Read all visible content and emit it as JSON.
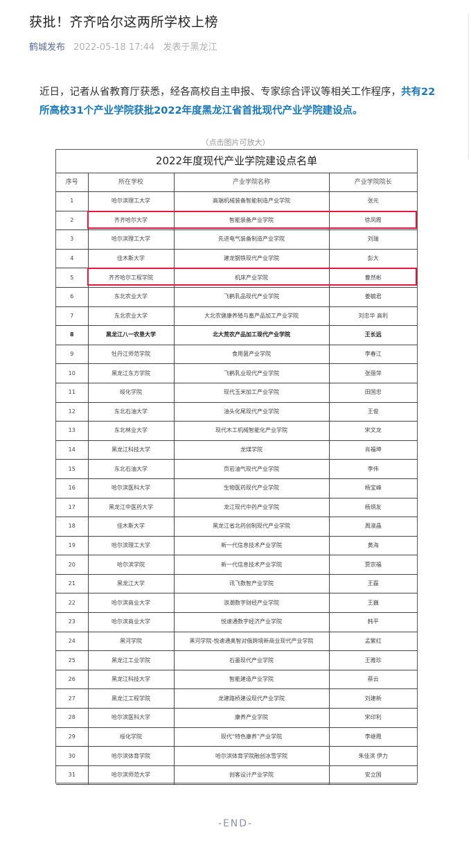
{
  "article": {
    "title": "获批！齐齐哈尔这两所学校上榜",
    "author": "鹤城发布",
    "date": "2022-05-18 17:44",
    "location": "发表于黑龙江",
    "paragraph_normal": "近日，记者从省教育厅获悉，经各高校自主申报、专家综合评议等相关工作程序，",
    "paragraph_highlight": "共有22所高校31个产业学院获批2022年度黑龙江省首批现代产业学院建设点。",
    "caption": "（点击图片可放大）",
    "end": "-END-",
    "highlight_color": "#1b78b6",
    "box_color": "#e8173f"
  },
  "table": {
    "title": "2022年度现代产业学院建设点名单",
    "headers": [
      "序号",
      "所在学校",
      "产业学院名称",
      "产业学院院长"
    ],
    "highlighted_rows": [
      2,
      5
    ],
    "rows": [
      [
        "1",
        "哈尔滨理工大学",
        "高端机械装备智能制造产业学院",
        "张元"
      ],
      [
        "2",
        "齐齐哈尔大学",
        "智能装备产业学院",
        "徐凤霞"
      ],
      [
        "3",
        "哈尔滨理工大学",
        "先进电气装备制造产业学院",
        "刘瑞"
      ],
      [
        "4",
        "佳木斯大学",
        "建龙钢铁现代产业学院",
        "彭大"
      ],
      [
        "5",
        "齐齐哈尔工程学院",
        "机床产业学院",
        "曹然彬"
      ],
      [
        "6",
        "东北农业大学",
        "飞鹤乳品现代产业学院",
        "姜毓君"
      ],
      [
        "7",
        "东北农业大学",
        "大北农健康养殖与畜产品加工产业学院",
        "刘忠华 高利"
      ],
      [
        "8",
        "黑龙江八一农垦大学",
        "北大荒农产品加工现代产业学院",
        "王长远"
      ],
      [
        "9",
        "牡丹江师范学院",
        "食用菌产业学院",
        "李春江"
      ],
      [
        "10",
        "黑龙江东方学院",
        "飞鹤乳业现代产业学院",
        "张丽萍"
      ],
      [
        "11",
        "绥化学院",
        "现代玉米加工产业学院",
        "田国忠"
      ],
      [
        "12",
        "东北石油大学",
        "油头化尾现代产业学院",
        "王俊"
      ],
      [
        "13",
        "东北林业大学",
        "现代木工机械智能化产业学院",
        "宋文龙"
      ],
      [
        "14",
        "黑龙江科技大学",
        "龙煤学院",
        "肖福坤"
      ],
      [
        "15",
        "东北石油大学",
        "页岩油气现代产业学院",
        "李伟"
      ],
      [
        "16",
        "哈尔滨医科大学",
        "生物医药现代产业学院",
        "杨宝峰"
      ],
      [
        "17",
        "黑龙江中医药大学",
        "龙江现代中药产业学院",
        "杨炳友"
      ],
      [
        "18",
        "佳木斯大学",
        "黑龙江省北药创制现代产业学院",
        "周淑晶"
      ],
      [
        "19",
        "哈尔滨理工大学",
        "新一代信息技术产业学院",
        "黄海"
      ],
      [
        "20",
        "哈尔滨学院",
        "新一代信息技术产业学院",
        "贾宗福"
      ],
      [
        "21",
        "黑龙江大学",
        "讯飞数智产业学院",
        "王磊"
      ],
      [
        "22",
        "哈尔滨商业大学",
        "浪潮数字财经产业学院",
        "王巍"
      ],
      [
        "23",
        "哈尔滨商业大学",
        "悦速通数字经济产业学院",
        "韩平"
      ],
      [
        "24",
        "黑河学院",
        "黑河学院-悦速通奥智对俄跨境新商业现代产业学院",
        "孟繁红"
      ],
      [
        "25",
        "黑龙江工业学院",
        "石墨现代产业学院",
        "王雅珍"
      ],
      [
        "26",
        "黑龙江科技大学",
        "智能建造产业学院",
        "蔡云"
      ],
      [
        "27",
        "黑龙江工程学院",
        "龙建路桥建设现代产业学院",
        "刘建新"
      ],
      [
        "28",
        "哈尔滨医科大学",
        "康养产业学院",
        "宋印利"
      ],
      [
        "29",
        "绥化学院",
        "现代“特色康养”产业学院",
        "李继霞"
      ],
      [
        "30",
        "哈尔滨体育学院",
        "哈尔滨体育学院融创冰雪学院",
        "朱佳滨 伊力"
      ],
      [
        "31",
        "哈尔滨师范大学",
        "创客设计产业学院",
        "安立国"
      ]
    ]
  }
}
